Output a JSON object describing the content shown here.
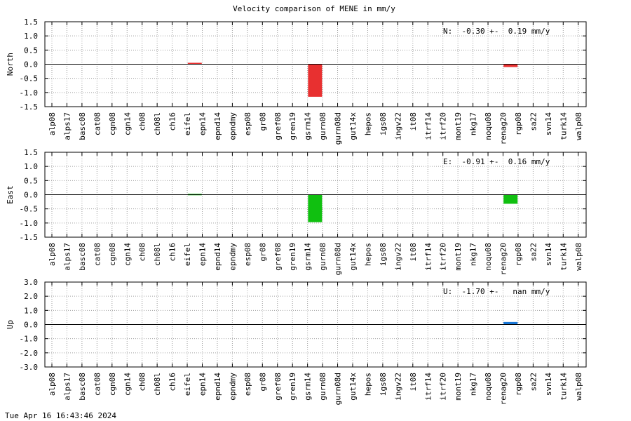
{
  "chart_data": {
    "title": "Velocity comparison of MENE in mm/y",
    "categories": [
      "alp08",
      "alps17",
      "basc08",
      "cat08",
      "cgn08",
      "cgn14",
      "ch08",
      "ch08l",
      "ch16",
      "eifel",
      "epn14",
      "epnd14",
      "epndmy",
      "esp08",
      "gr08",
      "gref08",
      "gren19",
      "gsrm14",
      "gurn08",
      "gurn08d",
      "gut14x",
      "hepos",
      "igs08",
      "ingv22",
      "it08",
      "itrf14",
      "itrf20",
      "mont19",
      "nkg17",
      "noqu08",
      "renag20",
      "rgp08",
      "sa22",
      "svn14",
      "turk14",
      "walp08"
    ],
    "footer_timestamp": "Tue Apr 16 16:43:46 2024",
    "panels": [
      {
        "type": "bar",
        "ylabel": "North",
        "color": "#e83030",
        "ylim": [
          -1.5,
          1.5
        ],
        "ytick_labels": [
          "1.5",
          "1.0",
          "0.5",
          "0.0",
          "-0.5",
          "-1.0",
          "-1.5"
        ],
        "ytick_values": [
          1.5,
          1.0,
          0.5,
          0.0,
          -0.5,
          -1.0,
          -1.5
        ],
        "annotation": "N:  -0.30 +-  0.19 mm/y",
        "values": {
          "eifel": 0.05,
          "gsrm14": -1.15,
          "renag20": -0.1
        }
      },
      {
        "type": "bar",
        "ylabel": "East",
        "color": "#10c010",
        "ylim": [
          -1.5,
          1.5
        ],
        "ytick_labels": [
          "1.5",
          "1.0",
          "0.5",
          "0.0",
          "-0.5",
          "-1.0",
          "-1.5"
        ],
        "ytick_values": [
          1.5,
          1.0,
          0.5,
          0.0,
          -0.5,
          -1.0,
          -1.5
        ],
        "annotation": "E:  -0.91 +-  0.16 mm/y",
        "values": {
          "eifel": 0.03,
          "gsrm14": -0.97,
          "renag20": -0.32
        }
      },
      {
        "type": "bar",
        "ylabel": "Up",
        "color": "#1a78d8",
        "ylim": [
          -3.0,
          3.0
        ],
        "ytick_labels": [
          "3.0",
          "2.0",
          "1.0",
          "0.0",
          "-1.0",
          "-2.0",
          "-3.0"
        ],
        "ytick_values": [
          3.0,
          2.0,
          1.0,
          0.0,
          -1.0,
          -2.0,
          -3.0
        ],
        "annotation": "U:  -1.70 +-   nan mm/y",
        "values": {
          "renag20": 0.18
        }
      }
    ]
  }
}
